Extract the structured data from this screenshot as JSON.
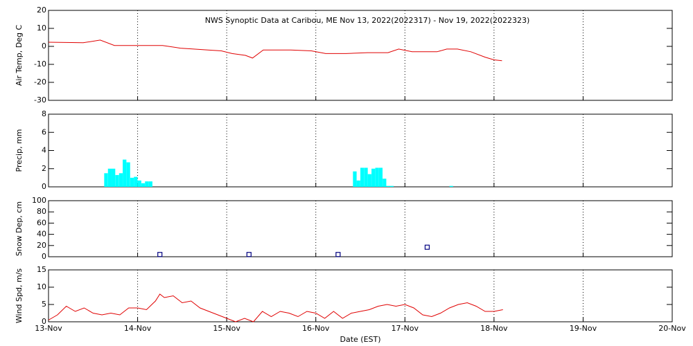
{
  "chart_data": [
    {
      "type": "line",
      "title": "NWS Synoptic Data at Caribou, ME   Nov 13, 2022(2022317) - Nov 19, 2022(2022323)",
      "ylabel": "Air Temp, Deg C",
      "ylim": [
        -30,
        20
      ],
      "yticks": [
        -30,
        -20,
        -10,
        0,
        10,
        20
      ],
      "series": [
        {
          "color": "#e00000",
          "x": [
            0,
            0.39,
            0.58,
            0.74,
            1.01,
            1.28,
            1.48,
            1.63,
            1.79,
            1.94,
            2.06,
            2.21,
            2.29,
            2.41,
            2.72,
            2.95,
            3.11,
            3.34,
            3.58,
            3.81,
            3.93,
            4.08,
            4.36,
            4.47,
            4.59,
            4.74,
            4.9,
            5.0,
            5.09
          ],
          "values": [
            2.3,
            2,
            3.5,
            0.5,
            0.5,
            0.5,
            -1,
            -1.5,
            -2,
            -2.5,
            -4,
            -5,
            -6.5,
            -2,
            -2,
            -2.5,
            -4,
            -4,
            -3.5,
            -3.5,
            -1.5,
            -3,
            -3,
            -1.5,
            -1.5,
            -3,
            -6,
            -7.5,
            -8
          ]
        }
      ]
    },
    {
      "type": "bar",
      "ylabel": "Precip, mm",
      "ylim": [
        0,
        8
      ],
      "yticks": [
        0,
        2,
        4,
        6,
        8
      ],
      "color": "#00ffff",
      "x": [
        0.625,
        0.667,
        0.708,
        0.75,
        0.792,
        0.833,
        0.875,
        0.917,
        0.958,
        1.0,
        1.042,
        1.083,
        1.125,
        3.417,
        3.458,
        3.5,
        3.542,
        3.583,
        3.625,
        3.667,
        3.708,
        3.75,
        3.792,
        3.833,
        4.5
      ],
      "values": [
        1.5,
        2,
        2,
        1.3,
        1.5,
        3,
        2.7,
        1,
        1.1,
        0.7,
        0.4,
        0.6,
        0.6,
        1.7,
        0.7,
        2.1,
        2.1,
        1.4,
        2,
        2.1,
        2.1,
        0.9,
        0.1,
        0.1,
        0.1
      ]
    },
    {
      "type": "scatter",
      "ylabel": "Snow Dep, cm",
      "ylim": [
        0,
        100
      ],
      "yticks": [
        0,
        20,
        40,
        60,
        80,
        100
      ],
      "color": "#000080",
      "x": [
        1.25,
        2.25,
        3.25,
        4.25
      ],
      "values": [
        4,
        4,
        4,
        17
      ]
    },
    {
      "type": "line",
      "ylabel": "Wind Spd, m/s",
      "ylim": [
        0,
        15
      ],
      "yticks": [
        0,
        5,
        10,
        15
      ],
      "xlabel": "Date (EST)",
      "xlim": [
        0,
        7
      ],
      "xticks": [
        {
          "value": 0,
          "label": "13-Nov"
        },
        {
          "value": 1,
          "label": "14-Nov"
        },
        {
          "value": 2,
          "label": "15-Nov"
        },
        {
          "value": 3,
          "label": "16-Nov"
        },
        {
          "value": 4,
          "label": "17-Nov"
        },
        {
          "value": 5,
          "label": "18-Nov"
        },
        {
          "value": 6,
          "label": "19-Nov"
        },
        {
          "value": 7,
          "label": "20-Nov"
        }
      ],
      "series": [
        {
          "color": "#e00000",
          "x": [
            0,
            0.1,
            0.2,
            0.3,
            0.4,
            0.5,
            0.6,
            0.7,
            0.8,
            0.9,
            1.0,
            1.1,
            1.2,
            1.25,
            1.3,
            1.4,
            1.5,
            1.6,
            1.7,
            1.8,
            1.9,
            2.0,
            2.1,
            2.2,
            2.3,
            2.4,
            2.5,
            2.6,
            2.7,
            2.8,
            2.9,
            3.0,
            3.1,
            3.2,
            3.3,
            3.4,
            3.5,
            3.6,
            3.7,
            3.8,
            3.9,
            4.0,
            4.1,
            4.2,
            4.3,
            4.4,
            4.5,
            4.6,
            4.7,
            4.8,
            4.9,
            5.0,
            5.1
          ],
          "values": [
            0.5,
            2,
            4.5,
            3,
            4,
            2.5,
            2,
            2.5,
            2,
            4,
            4,
            3.5,
            6,
            8,
            7,
            7.5,
            5.5,
            6,
            4,
            3,
            2,
            1,
            0,
            1,
            0,
            3,
            1.5,
            3,
            2.5,
            1.5,
            3,
            2.5,
            1,
            3,
            1,
            2.5,
            3,
            3.5,
            4.5,
            5,
            4.5,
            5,
            4,
            2,
            1.5,
            2.5,
            4,
            5,
            5.5,
            4.5,
            3,
            3,
            3.5
          ]
        }
      ]
    }
  ]
}
